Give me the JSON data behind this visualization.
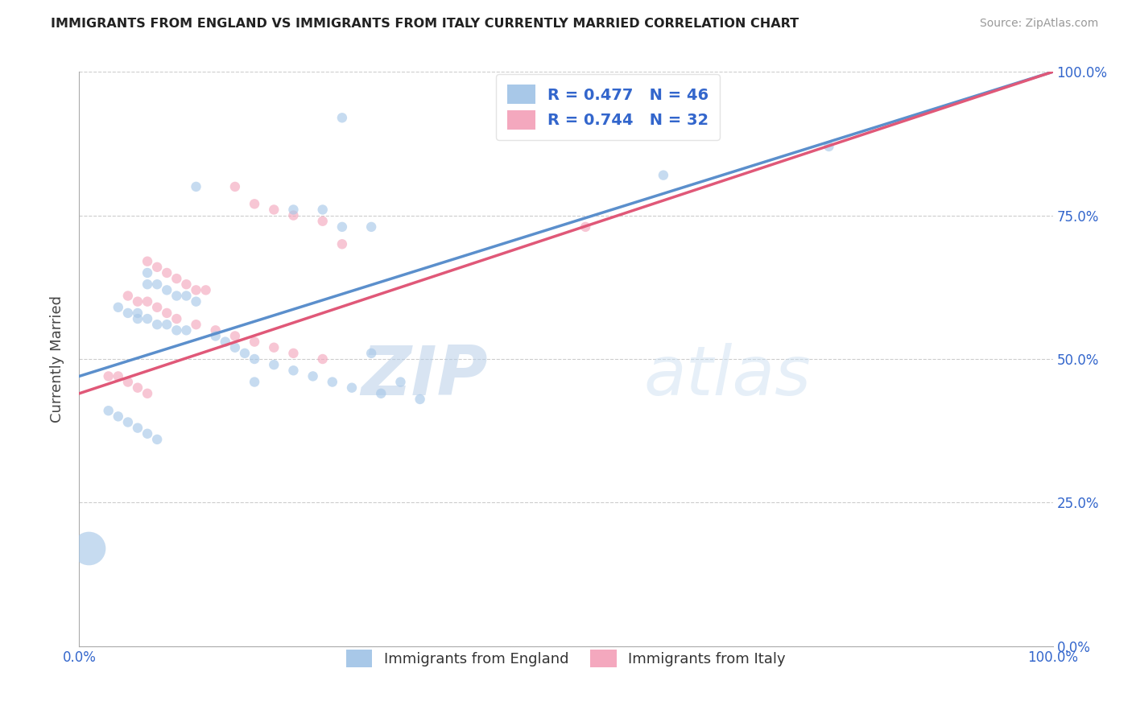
{
  "title": "IMMIGRANTS FROM ENGLAND VS IMMIGRANTS FROM ITALY CURRENTLY MARRIED CORRELATION CHART",
  "source": "Source: ZipAtlas.com",
  "ylabel": "Currently Married",
  "xlim": [
    0.0,
    1.0
  ],
  "ylim": [
    0.0,
    1.0
  ],
  "y_tick_positions": [
    0.0,
    0.25,
    0.5,
    0.75,
    1.0
  ],
  "y_tick_labels": [
    "0.0%",
    "25.0%",
    "50.0%",
    "75.0%",
    "100.0%"
  ],
  "x_tick_positions": [
    0.0,
    1.0
  ],
  "x_tick_labels": [
    "0.0%",
    "100.0%"
  ],
  "color_england": "#a8c8e8",
  "color_italy": "#f4a8be",
  "color_england_line": "#5b8fcc",
  "color_italy_line": "#e05878",
  "color_legend_text": "#3366cc",
  "color_axis_text": "#3366cc",
  "watermark_zip": "ZIP",
  "watermark_atlas": "atlas",
  "england_x": [
    0.27,
    0.12,
    0.22,
    0.25,
    0.27,
    0.3,
    0.07,
    0.07,
    0.08,
    0.09,
    0.1,
    0.11,
    0.12,
    0.04,
    0.05,
    0.06,
    0.06,
    0.07,
    0.08,
    0.09,
    0.1,
    0.11,
    0.14,
    0.15,
    0.16,
    0.17,
    0.18,
    0.2,
    0.22,
    0.24,
    0.26,
    0.28,
    0.31,
    0.35,
    0.03,
    0.04,
    0.05,
    0.06,
    0.07,
    0.08,
    0.6,
    0.77,
    0.3,
    0.33,
    0.18,
    0.01
  ],
  "england_y": [
    0.92,
    0.8,
    0.76,
    0.76,
    0.73,
    0.73,
    0.65,
    0.63,
    0.63,
    0.62,
    0.61,
    0.61,
    0.6,
    0.59,
    0.58,
    0.58,
    0.57,
    0.57,
    0.56,
    0.56,
    0.55,
    0.55,
    0.54,
    0.53,
    0.52,
    0.51,
    0.5,
    0.49,
    0.48,
    0.47,
    0.46,
    0.45,
    0.44,
    0.43,
    0.41,
    0.4,
    0.39,
    0.38,
    0.37,
    0.36,
    0.82,
    0.87,
    0.51,
    0.46,
    0.46,
    0.17
  ],
  "england_sizes": [
    80,
    80,
    80,
    80,
    80,
    80,
    80,
    80,
    80,
    80,
    80,
    80,
    80,
    80,
    80,
    80,
    80,
    80,
    80,
    80,
    80,
    80,
    80,
    80,
    80,
    80,
    80,
    80,
    80,
    80,
    80,
    80,
    80,
    80,
    80,
    80,
    80,
    80,
    80,
    80,
    80,
    80,
    80,
    80,
    80,
    900
  ],
  "italy_x": [
    0.16,
    0.18,
    0.2,
    0.22,
    0.25,
    0.27,
    0.07,
    0.08,
    0.09,
    0.1,
    0.11,
    0.12,
    0.13,
    0.05,
    0.06,
    0.07,
    0.08,
    0.09,
    0.1,
    0.12,
    0.14,
    0.16,
    0.18,
    0.2,
    0.22,
    0.25,
    0.52,
    0.03,
    0.04,
    0.05,
    0.06,
    0.07
  ],
  "italy_y": [
    0.8,
    0.77,
    0.76,
    0.75,
    0.74,
    0.7,
    0.67,
    0.66,
    0.65,
    0.64,
    0.63,
    0.62,
    0.62,
    0.61,
    0.6,
    0.6,
    0.59,
    0.58,
    0.57,
    0.56,
    0.55,
    0.54,
    0.53,
    0.52,
    0.51,
    0.5,
    0.73,
    0.47,
    0.47,
    0.46,
    0.45,
    0.44
  ],
  "italy_sizes": [
    80,
    80,
    80,
    80,
    80,
    80,
    80,
    80,
    80,
    80,
    80,
    80,
    80,
    80,
    80,
    80,
    80,
    80,
    80,
    80,
    80,
    80,
    80,
    80,
    80,
    80,
    80,
    80,
    80,
    80,
    80,
    80
  ],
  "eng_line_x0": 0.0,
  "eng_line_y0": 0.47,
  "eng_line_x1": 1.0,
  "eng_line_y1": 1.0,
  "ita_line_x0": 0.0,
  "ita_line_y0": 0.44,
  "ita_line_x1": 1.0,
  "ita_line_y1": 1.0
}
